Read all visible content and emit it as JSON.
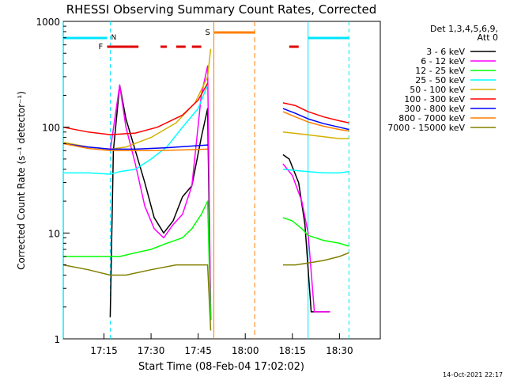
{
  "chart_data": {
    "type": "line",
    "title": "RHESSI Observing Summary Count Rates, Corrected",
    "xlabel": "Start Time (08-Feb-04 17:02:02)",
    "ylabel": "Corrected Count Rate (s⁻¹ detector⁻¹)",
    "timestamp": "14-Oct-2021 22:17",
    "y_scale": "log",
    "xlim": [
      "17:02:02",
      "18:43:00"
    ],
    "ylim": [
      1,
      1000
    ],
    "x_ticks": [
      "17:15",
      "17:30",
      "17:45",
      "18:00",
      "18:15",
      "18:30"
    ],
    "y_ticks": [
      {
        "value": 1,
        "label": "1"
      },
      {
        "value": 10,
        "label": "10"
      },
      {
        "value": 100,
        "label": "100"
      },
      {
        "value": 1000,
        "label": "1000"
      }
    ],
    "legend": {
      "position": "right",
      "header": [
        "Det 1,3,4,5,6,9,",
        "Att 0"
      ]
    },
    "series": [
      {
        "name": "3 - 6 keV",
        "color": "#000000",
        "segments": [
          [
            [
              "17:17",
              1.6
            ],
            [
              "17:18",
              60
            ],
            [
              "17:20",
              250
            ],
            [
              "17:22",
              120
            ],
            [
              "17:25",
              60
            ],
            [
              "17:28",
              30
            ],
            [
              "17:31",
              14
            ],
            [
              "17:34",
              10
            ],
            [
              "17:37",
              13
            ],
            [
              "17:40",
              22
            ],
            [
              "17:43",
              28
            ],
            [
              "17:46",
              80
            ],
            [
              "17:48",
              150
            ],
            [
              "17:49",
              1.5
            ]
          ],
          [
            [
              "18:12",
              55
            ],
            [
              "18:14",
              50
            ],
            [
              "18:17",
              30
            ],
            [
              "18:19",
              12
            ],
            [
              "18:21",
              1.8
            ],
            [
              "18:27",
              1.8
            ]
          ]
        ]
      },
      {
        "name": "6 - 12 keV",
        "color": "#ff00ff",
        "segments": [
          [
            [
              "17:17",
              60
            ],
            [
              "17:20",
              250
            ],
            [
              "17:22",
              100
            ],
            [
              "17:25",
              45
            ],
            [
              "17:28",
              18
            ],
            [
              "17:31",
              11
            ],
            [
              "17:34",
              9
            ],
            [
              "17:37",
              12
            ],
            [
              "17:40",
              15
            ],
            [
              "17:43",
              28
            ],
            [
              "17:46",
              200
            ],
            [
              "17:48",
              380
            ],
            [
              "17:49",
              1.5
            ]
          ],
          [
            [
              "18:12",
              45
            ],
            [
              "18:15",
              35
            ],
            [
              "18:18",
              20
            ],
            [
              "18:20",
              10
            ],
            [
              "18:22",
              1.8
            ],
            [
              "18:27",
              1.8
            ]
          ]
        ]
      },
      {
        "name": "12 - 25 keV",
        "color": "#00ff00",
        "segments": [
          [
            [
              "17:02",
              6
            ],
            [
              "17:10",
              6
            ],
            [
              "17:16",
              6
            ],
            [
              "17:20",
              6
            ],
            [
              "17:25",
              6.5
            ],
            [
              "17:30",
              7
            ],
            [
              "17:35",
              8
            ],
            [
              "17:40",
              9
            ],
            [
              "17:43",
              11
            ],
            [
              "17:46",
              15
            ],
            [
              "17:48",
              20
            ],
            [
              "17:49",
              1.5
            ]
          ],
          [
            [
              "18:12",
              14
            ],
            [
              "18:15",
              13
            ],
            [
              "18:18",
              11
            ],
            [
              "18:20",
              9.5
            ],
            [
              "18:25",
              8.5
            ],
            [
              "18:30",
              8
            ],
            [
              "18:33",
              7.5
            ]
          ]
        ]
      },
      {
        "name": "25 - 50 keV",
        "color": "#00ffff",
        "segments": [
          [
            [
              "17:02",
              37
            ],
            [
              "17:10",
              37
            ],
            [
              "17:17",
              36
            ],
            [
              "17:20",
              38
            ],
            [
              "17:25",
              40
            ],
            [
              "17:30",
              50
            ],
            [
              "17:35",
              65
            ],
            [
              "17:40",
              100
            ],
            [
              "17:45",
              150
            ],
            [
              "17:48",
              250
            ]
          ],
          [
            [
              "18:12",
              40
            ],
            [
              "18:16",
              39
            ],
            [
              "18:20",
              38
            ],
            [
              "18:25",
              37
            ],
            [
              "18:30",
              37
            ],
            [
              "18:33",
              38
            ]
          ]
        ]
      },
      {
        "name": "50 - 100 keV",
        "color": "#d4b000",
        "segments": [
          [
            [
              "17:02",
              72
            ],
            [
              "17:10",
              65
            ],
            [
              "17:17",
              62
            ],
            [
              "17:22",
              65
            ],
            [
              "17:30",
              80
            ],
            [
              "17:38",
              110
            ],
            [
              "17:44",
              170
            ],
            [
              "17:48",
              300
            ],
            [
              "17:49",
              550
            ]
          ],
          [
            [
              "18:12",
              90
            ],
            [
              "18:18",
              86
            ],
            [
              "18:24",
              82
            ],
            [
              "18:30",
              78
            ],
            [
              "18:33",
              78
            ]
          ]
        ]
      },
      {
        "name": "100 - 300 keV",
        "color": "#ff0000",
        "segments": [
          [
            [
              "17:02",
              100
            ],
            [
              "17:10",
              90
            ],
            [
              "17:17",
              85
            ],
            [
              "17:25",
              88
            ],
            [
              "17:32",
              100
            ],
            [
              "17:40",
              130
            ],
            [
              "17:45",
              180
            ],
            [
              "17:48",
              260
            ]
          ],
          [
            [
              "18:12",
              170
            ],
            [
              "18:16",
              160
            ],
            [
              "18:20",
              140
            ],
            [
              "18:25",
              125
            ],
            [
              "18:30",
              115
            ],
            [
              "18:33",
              110
            ]
          ]
        ]
      },
      {
        "name": "300 - 800 keV",
        "color": "#0000ff",
        "segments": [
          [
            [
              "17:02",
              70
            ],
            [
              "17:10",
              65
            ],
            [
              "17:17",
              62
            ],
            [
              "17:25",
              62
            ],
            [
              "17:35",
              64
            ],
            [
              "17:42",
              66
            ],
            [
              "17:48",
              68
            ]
          ],
          [
            [
              "18:12",
              150
            ],
            [
              "18:16",
              135
            ],
            [
              "18:20",
              120
            ],
            [
              "18:25",
              108
            ],
            [
              "18:30",
              100
            ],
            [
              "18:33",
              95
            ]
          ]
        ]
      },
      {
        "name": "800 - 7000 keV",
        "color": "#ff7f00",
        "segments": [
          [
            [
              "17:02",
              70
            ],
            [
              "17:10",
              63
            ],
            [
              "17:17",
              60
            ],
            [
              "17:30",
              60
            ],
            [
              "17:40",
              61
            ],
            [
              "17:48",
              62
            ]
          ],
          [
            [
              "18:12",
              140
            ],
            [
              "18:16",
              125
            ],
            [
              "18:20",
              112
            ],
            [
              "18:25",
              102
            ],
            [
              "18:30",
              95
            ],
            [
              "18:33",
              92
            ]
          ]
        ]
      },
      {
        "name": "7000 - 15000 keV",
        "color": "#808000",
        "segments": [
          [
            [
              "17:02",
              5
            ],
            [
              "17:10",
              4.5
            ],
            [
              "17:17",
              4
            ],
            [
              "17:22",
              4
            ],
            [
              "17:30",
              4.5
            ],
            [
              "17:38",
              5
            ],
            [
              "17:44",
              5
            ],
            [
              "17:48",
              5
            ],
            [
              "17:49",
              1.2
            ]
          ],
          [
            [
              "18:12",
              5
            ],
            [
              "18:16",
              5
            ],
            [
              "18:20",
              5.2
            ],
            [
              "18:25",
              5.5
            ],
            [
              "18:30",
              6
            ],
            [
              "18:33",
              6.5
            ]
          ]
        ]
      }
    ],
    "annotations": {
      "night_label": "N",
      "night_bars": [
        [
          "17:02",
          "17:16"
        ],
        [
          "18:20",
          "18:33"
        ]
      ],
      "flare_label": "F",
      "flare_bars": [
        [
          "17:16",
          "17:26"
        ],
        [
          "17:33",
          "17:35"
        ],
        [
          "17:38",
          "17:41"
        ],
        [
          "17:43",
          "17:46"
        ],
        [
          "18:14",
          "18:17"
        ]
      ],
      "saa_label": "S",
      "saa_bars": [
        [
          "17:50",
          "18:03"
        ]
      ],
      "vlines_cyan_solid": [
        "17:02",
        "18:20"
      ],
      "vlines_cyan_dashed": [
        "17:17",
        "18:33"
      ],
      "vlines_orange_solid": [
        "17:50"
      ],
      "vlines_orange_dashed": [
        "18:03"
      ]
    }
  }
}
